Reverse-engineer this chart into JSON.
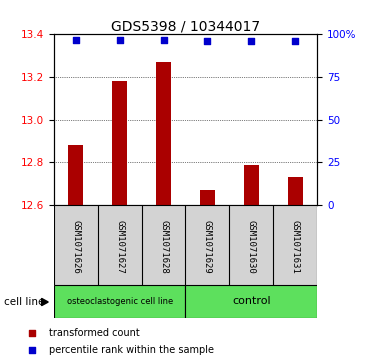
{
  "title": "GDS5398 / 10344017",
  "samples": [
    "GSM1071626",
    "GSM1071627",
    "GSM1071628",
    "GSM1071629",
    "GSM1071630",
    "GSM1071631"
  ],
  "bar_values": [
    12.88,
    13.18,
    13.27,
    12.67,
    12.79,
    12.73
  ],
  "percentile_values": [
    97,
    97,
    97,
    96,
    96,
    96
  ],
  "ylim_left": [
    12.6,
    13.4
  ],
  "ylim_right": [
    0,
    100
  ],
  "yticks_left": [
    12.6,
    12.8,
    13.0,
    13.2,
    13.4
  ],
  "yticks_right": [
    0,
    25,
    50,
    75,
    100
  ],
  "bar_color": "#aa0000",
  "percentile_color": "#0000cc",
  "group1_label": "osteoclastogenic cell line",
  "group2_label": "control",
  "group1_samples": [
    0,
    1,
    2
  ],
  "group2_samples": [
    3,
    4,
    5
  ],
  "cell_line_label": "cell line",
  "legend_bar": "transformed count",
  "legend_scatter": "percentile rank within the sample",
  "group_bg_color": "#5de05d",
  "sample_box_color": "#d3d3d3",
  "title_fontsize": 10,
  "tick_fontsize": 7.5,
  "label_fontsize": 7
}
